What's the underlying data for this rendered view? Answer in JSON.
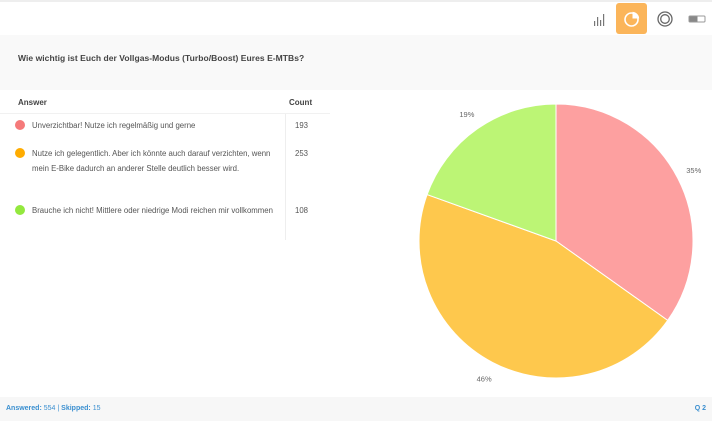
{
  "toolbar": {
    "buttons": [
      {
        "name": "bar-chart",
        "icon": "bar-chart-icon",
        "active": false
      },
      {
        "name": "pie-chart",
        "icon": "pie-chart-icon",
        "active": true
      },
      {
        "name": "donut-chart",
        "icon": "donut-chart-icon",
        "active": false
      },
      {
        "name": "toggle",
        "icon": "toggle-icon",
        "active": false
      }
    ],
    "active_color": "#fbb55a"
  },
  "question": {
    "title": "Wie wichtig ist Euch der Vollgas-Modus (Turbo/Boost) Eures E-MTBs?"
  },
  "table": {
    "headers": {
      "answer": "Answer",
      "count": "Count"
    },
    "rows": [
      {
        "answer": "Unverzichtbar! Nutze ich regelmäßig und gerne",
        "count": "193",
        "color": "#f57a7a"
      },
      {
        "answer": "Nutze ich gelegentlich. Aber ich könnte auch darauf verzichten, wenn mein E-Bike dadurch an anderer Stelle deutlich besser wird.",
        "count": "253",
        "color": "#ffac00"
      },
      {
        "answer": "Brauche ich nicht! Mittlere oder niedrige Modi reichen mir vollkommen",
        "count": "108",
        "color": "#93e83e"
      }
    ]
  },
  "chart_data": {
    "type": "pie",
    "title": "Wie wichtig ist Euch der Vollgas-Modus (Turbo/Boost) Eures E-MTBs?",
    "categories": [
      "Unverzichtbar! Nutze ich regelmäßig und gerne",
      "Nutze ich gelegentlich. Aber ich könnte auch darauf verzichten, wenn mein E-Bike dadurch an anderer Stelle deutlich besser wird.",
      "Brauche ich nicht! Mittlere oder niedrige Modi reichen mir vollkommen"
    ],
    "values": [
      193,
      253,
      108
    ],
    "percent_labels": [
      "35%",
      "46%",
      "19%"
    ],
    "colors": [
      "#fda0a0",
      "#fec84d",
      "#bcf575"
    ],
    "start_angle": "12 o'clock, clockwise"
  },
  "footer": {
    "answered_label": "Answered:",
    "answered_value": "554",
    "separator": "|",
    "skipped_label": "Skipped:",
    "skipped_value": "15",
    "question_number": "Q 2"
  }
}
